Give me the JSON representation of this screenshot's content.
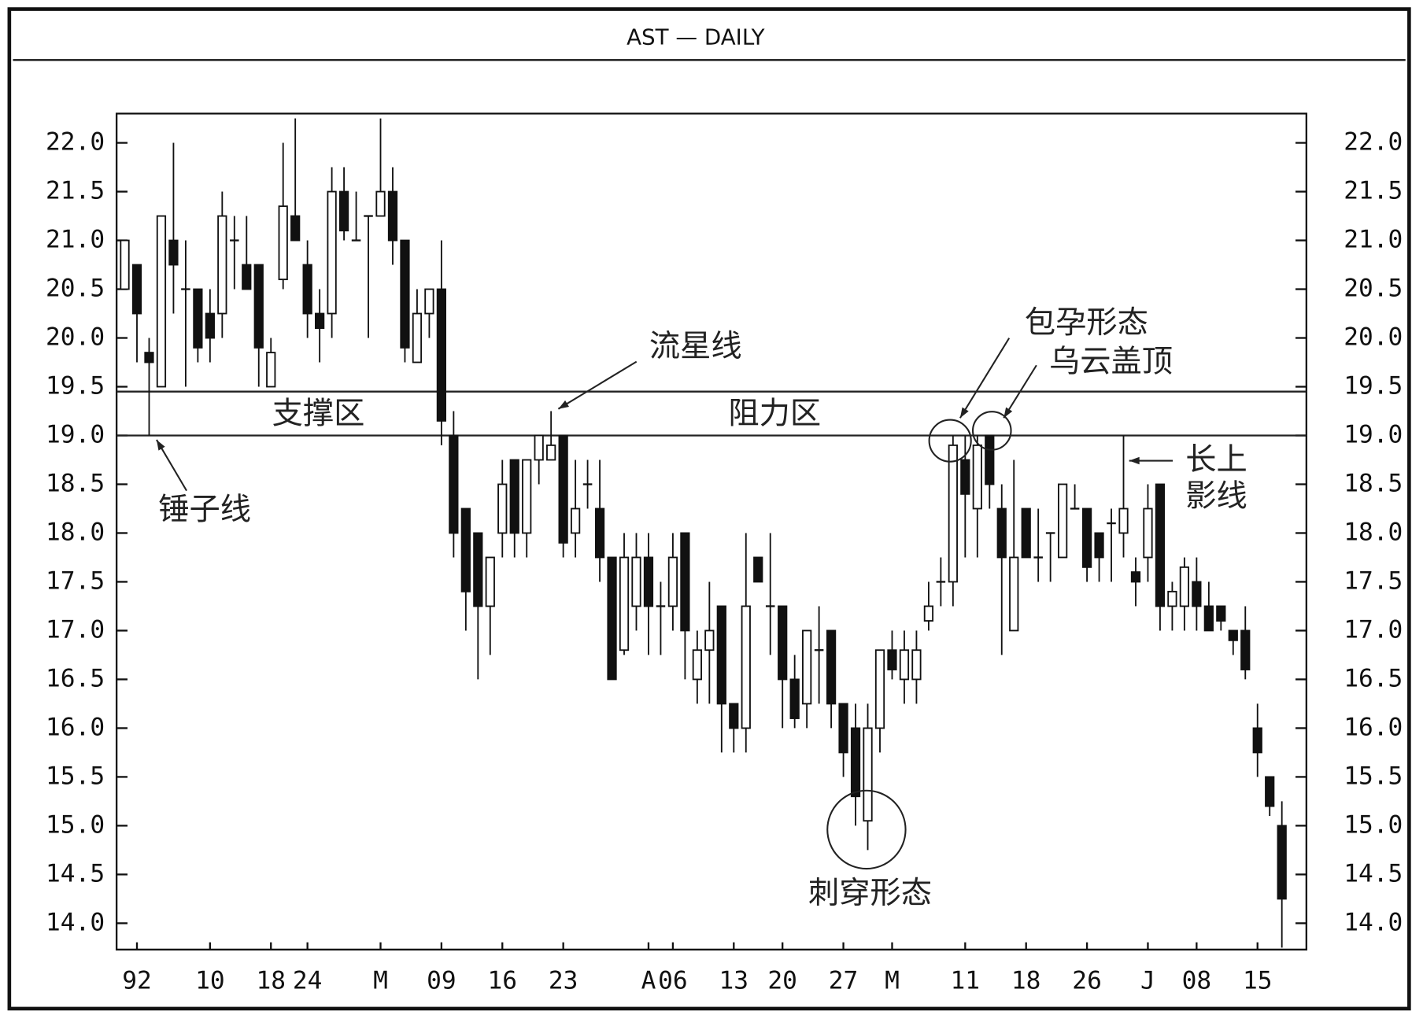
{
  "chart_data": {
    "type": "candlestick",
    "title": "AST — DAILY",
    "categories": [
      null,
      "92",
      null,
      null,
      null,
      null,
      null,
      "10",
      null,
      null,
      null,
      null,
      "18",
      null,
      null,
      "24",
      null,
      null,
      null,
      null,
      null,
      "M",
      null,
      null,
      null,
      null,
      "09",
      null,
      null,
      null,
      null,
      "16",
      null,
      null,
      null,
      null,
      "23",
      null,
      null,
      null,
      null,
      null,
      null,
      "A",
      null,
      "06",
      null,
      null,
      null,
      null,
      "13",
      null,
      null,
      null,
      "20",
      null,
      null,
      null,
      null,
      "27",
      null,
      null,
      null,
      "M",
      null,
      null,
      null,
      null,
      null,
      "11",
      null,
      null,
      null,
      null,
      "18",
      null,
      null,
      null,
      null,
      "26",
      null,
      null,
      null,
      null,
      "J",
      null,
      null,
      null,
      "08",
      null,
      null,
      null,
      null,
      "15",
      null,
      null
    ],
    "open": [
      20.5,
      20.75,
      19.85,
      19.5,
      21.0,
      20.5,
      20.5,
      20.25,
      20.25,
      21.0,
      20.75,
      20.75,
      19.5,
      20.6,
      21.25,
      20.75,
      20.25,
      20.25,
      21.5,
      21.0,
      21.25,
      21.25,
      21.5,
      21.0,
      19.75,
      20.25,
      20.5,
      19.0,
      18.25,
      18.0,
      17.25,
      18.0,
      18.75,
      18.0,
      18.75,
      18.75,
      19.0,
      18.0,
      18.5,
      18.25,
      17.75,
      16.8,
      17.25,
      17.75,
      17.25,
      17.25,
      18.0,
      16.5,
      16.8,
      17.25,
      16.25,
      16.0,
      17.75,
      17.25,
      17.25,
      16.5,
      16.25,
      16.8,
      17.0,
      16.25,
      16.0,
      15.05,
      16.0,
      16.8,
      16.5,
      16.5,
      17.1,
      17.5,
      17.5,
      18.75,
      18.25,
      19.0,
      18.25,
      17.0,
      18.25,
      17.75,
      18.0,
      17.75,
      18.25,
      18.25,
      18.0,
      18.1,
      18.0,
      17.6,
      17.75,
      18.5,
      17.25,
      17.25,
      17.5,
      17.25,
      17.25,
      17.0,
      17.0,
      16.0,
      15.5,
      15.0
    ],
    "high": [
      21.0,
      20.75,
      20.0,
      21.25,
      22.0,
      21.0,
      20.5,
      20.5,
      21.5,
      21.25,
      21.25,
      20.75,
      20.0,
      22.0,
      22.25,
      21.0,
      20.5,
      21.75,
      21.75,
      21.5,
      21.25,
      22.25,
      21.75,
      21.0,
      20.5,
      20.5,
      21.0,
      19.25,
      18.25,
      18.0,
      17.75,
      18.75,
      18.75,
      18.75,
      19.0,
      19.25,
      19.0,
      18.75,
      18.75,
      18.75,
      17.75,
      18.0,
      18.0,
      18.0,
      17.5,
      18.0,
      18.0,
      17.0,
      17.5,
      17.25,
      16.25,
      18.0,
      17.75,
      18.0,
      17.25,
      16.75,
      17.0,
      17.25,
      17.0,
      16.25,
      16.25,
      16.25,
      16.8,
      17.0,
      17.0,
      17.0,
      17.5,
      17.75,
      19.0,
      19.0,
      19.0,
      19.0,
      18.5,
      18.75,
      18.25,
      18.25,
      18.0,
      18.5,
      18.5,
      18.25,
      18.0,
      18.25,
      19.0,
      17.75,
      18.5,
      18.5,
      17.5,
      17.75,
      17.75,
      17.5,
      17.25,
      17.0,
      17.25,
      16.25,
      15.5,
      15.25
    ],
    "low": [
      20.5,
      19.75,
      19.0,
      19.5,
      20.25,
      19.5,
      19.75,
      19.75,
      20.0,
      20.5,
      20.5,
      19.5,
      19.5,
      20.5,
      21.0,
      20.0,
      19.75,
      20.0,
      21.0,
      21.0,
      20.0,
      21.25,
      20.75,
      19.75,
      19.75,
      20.0,
      18.9,
      17.75,
      17.0,
      16.5,
      16.75,
      17.75,
      17.75,
      17.75,
      18.5,
      18.75,
      17.75,
      17.75,
      18.25,
      17.5,
      16.5,
      16.75,
      17.0,
      16.75,
      16.75,
      17.0,
      16.5,
      16.25,
      16.25,
      15.75,
      15.75,
      15.75,
      17.5,
      16.75,
      16.0,
      16.0,
      16.0,
      16.25,
      16.0,
      15.5,
      15.0,
      14.75,
      15.75,
      16.5,
      16.25,
      16.25,
      17.0,
      17.25,
      17.25,
      17.75,
      17.75,
      18.25,
      16.75,
      17.0,
      17.75,
      17.5,
      17.5,
      17.75,
      18.25,
      17.5,
      17.5,
      17.5,
      17.75,
      17.25,
      17.5,
      17.0,
      17.0,
      17.0,
      17.0,
      17.0,
      17.0,
      16.75,
      16.5,
      15.5,
      15.1,
      13.75
    ],
    "close": [
      21.0,
      20.25,
      19.75,
      21.25,
      20.75,
      20.5,
      19.9,
      20.0,
      21.25,
      21.0,
      20.5,
      19.9,
      19.85,
      21.35,
      21.0,
      20.25,
      20.1,
      21.5,
      21.1,
      21.0,
      21.25,
      21.5,
      21.0,
      19.9,
      20.25,
      20.5,
      19.15,
      18.0,
      17.4,
      17.25,
      17.75,
      18.5,
      18.0,
      18.75,
      19.0,
      18.9,
      17.9,
      18.25,
      18.5,
      17.75,
      16.5,
      17.75,
      17.75,
      17.25,
      17.25,
      17.75,
      17.0,
      16.8,
      17.0,
      16.25,
      16.0,
      17.25,
      17.5,
      17.25,
      16.5,
      16.1,
      17.0,
      16.8,
      16.25,
      15.75,
      15.3,
      16.0,
      16.8,
      16.6,
      16.8,
      16.8,
      17.25,
      17.5,
      18.9,
      18.4,
      18.9,
      18.5,
      17.75,
      17.75,
      17.75,
      17.75,
      18.0,
      18.5,
      18.25,
      17.65,
      17.75,
      18.1,
      18.25,
      17.5,
      18.25,
      17.25,
      17.4,
      17.65,
      17.25,
      17.0,
      17.1,
      16.9,
      16.6,
      15.75,
      15.2,
      14.25
    ],
    "up_color": "#ffffff",
    "down_color": "#111111",
    "ylim": [
      13.73,
      22.3
    ],
    "yticks": [
      {
        "value": 14,
        "label": "14.0"
      },
      14.5,
      {
        "value": 15,
        "label": "15.0"
      },
      15.5,
      {
        "value": 16,
        "label": "16.0"
      },
      16.5,
      {
        "value": 17,
        "label": "17.0"
      },
      17.5,
      {
        "value": 18,
        "label": "18.0"
      },
      18.5,
      {
        "value": 19,
        "label": "19.0"
      },
      19.5,
      {
        "value": 20,
        "label": "20.0"
      },
      20.5,
      {
        "value": 21,
        "label": "21.0"
      },
      21.5,
      {
        "value": 22,
        "label": "22.0"
      }
    ],
    "zone_lines": [
      19.45,
      19.0
    ],
    "annotations": [
      "支撑区",
      "阻力区",
      "流星线",
      "锤子线",
      "包孕形态",
      "乌云盖顶",
      "长上",
      "影线",
      "刺穿形态"
    ]
  }
}
